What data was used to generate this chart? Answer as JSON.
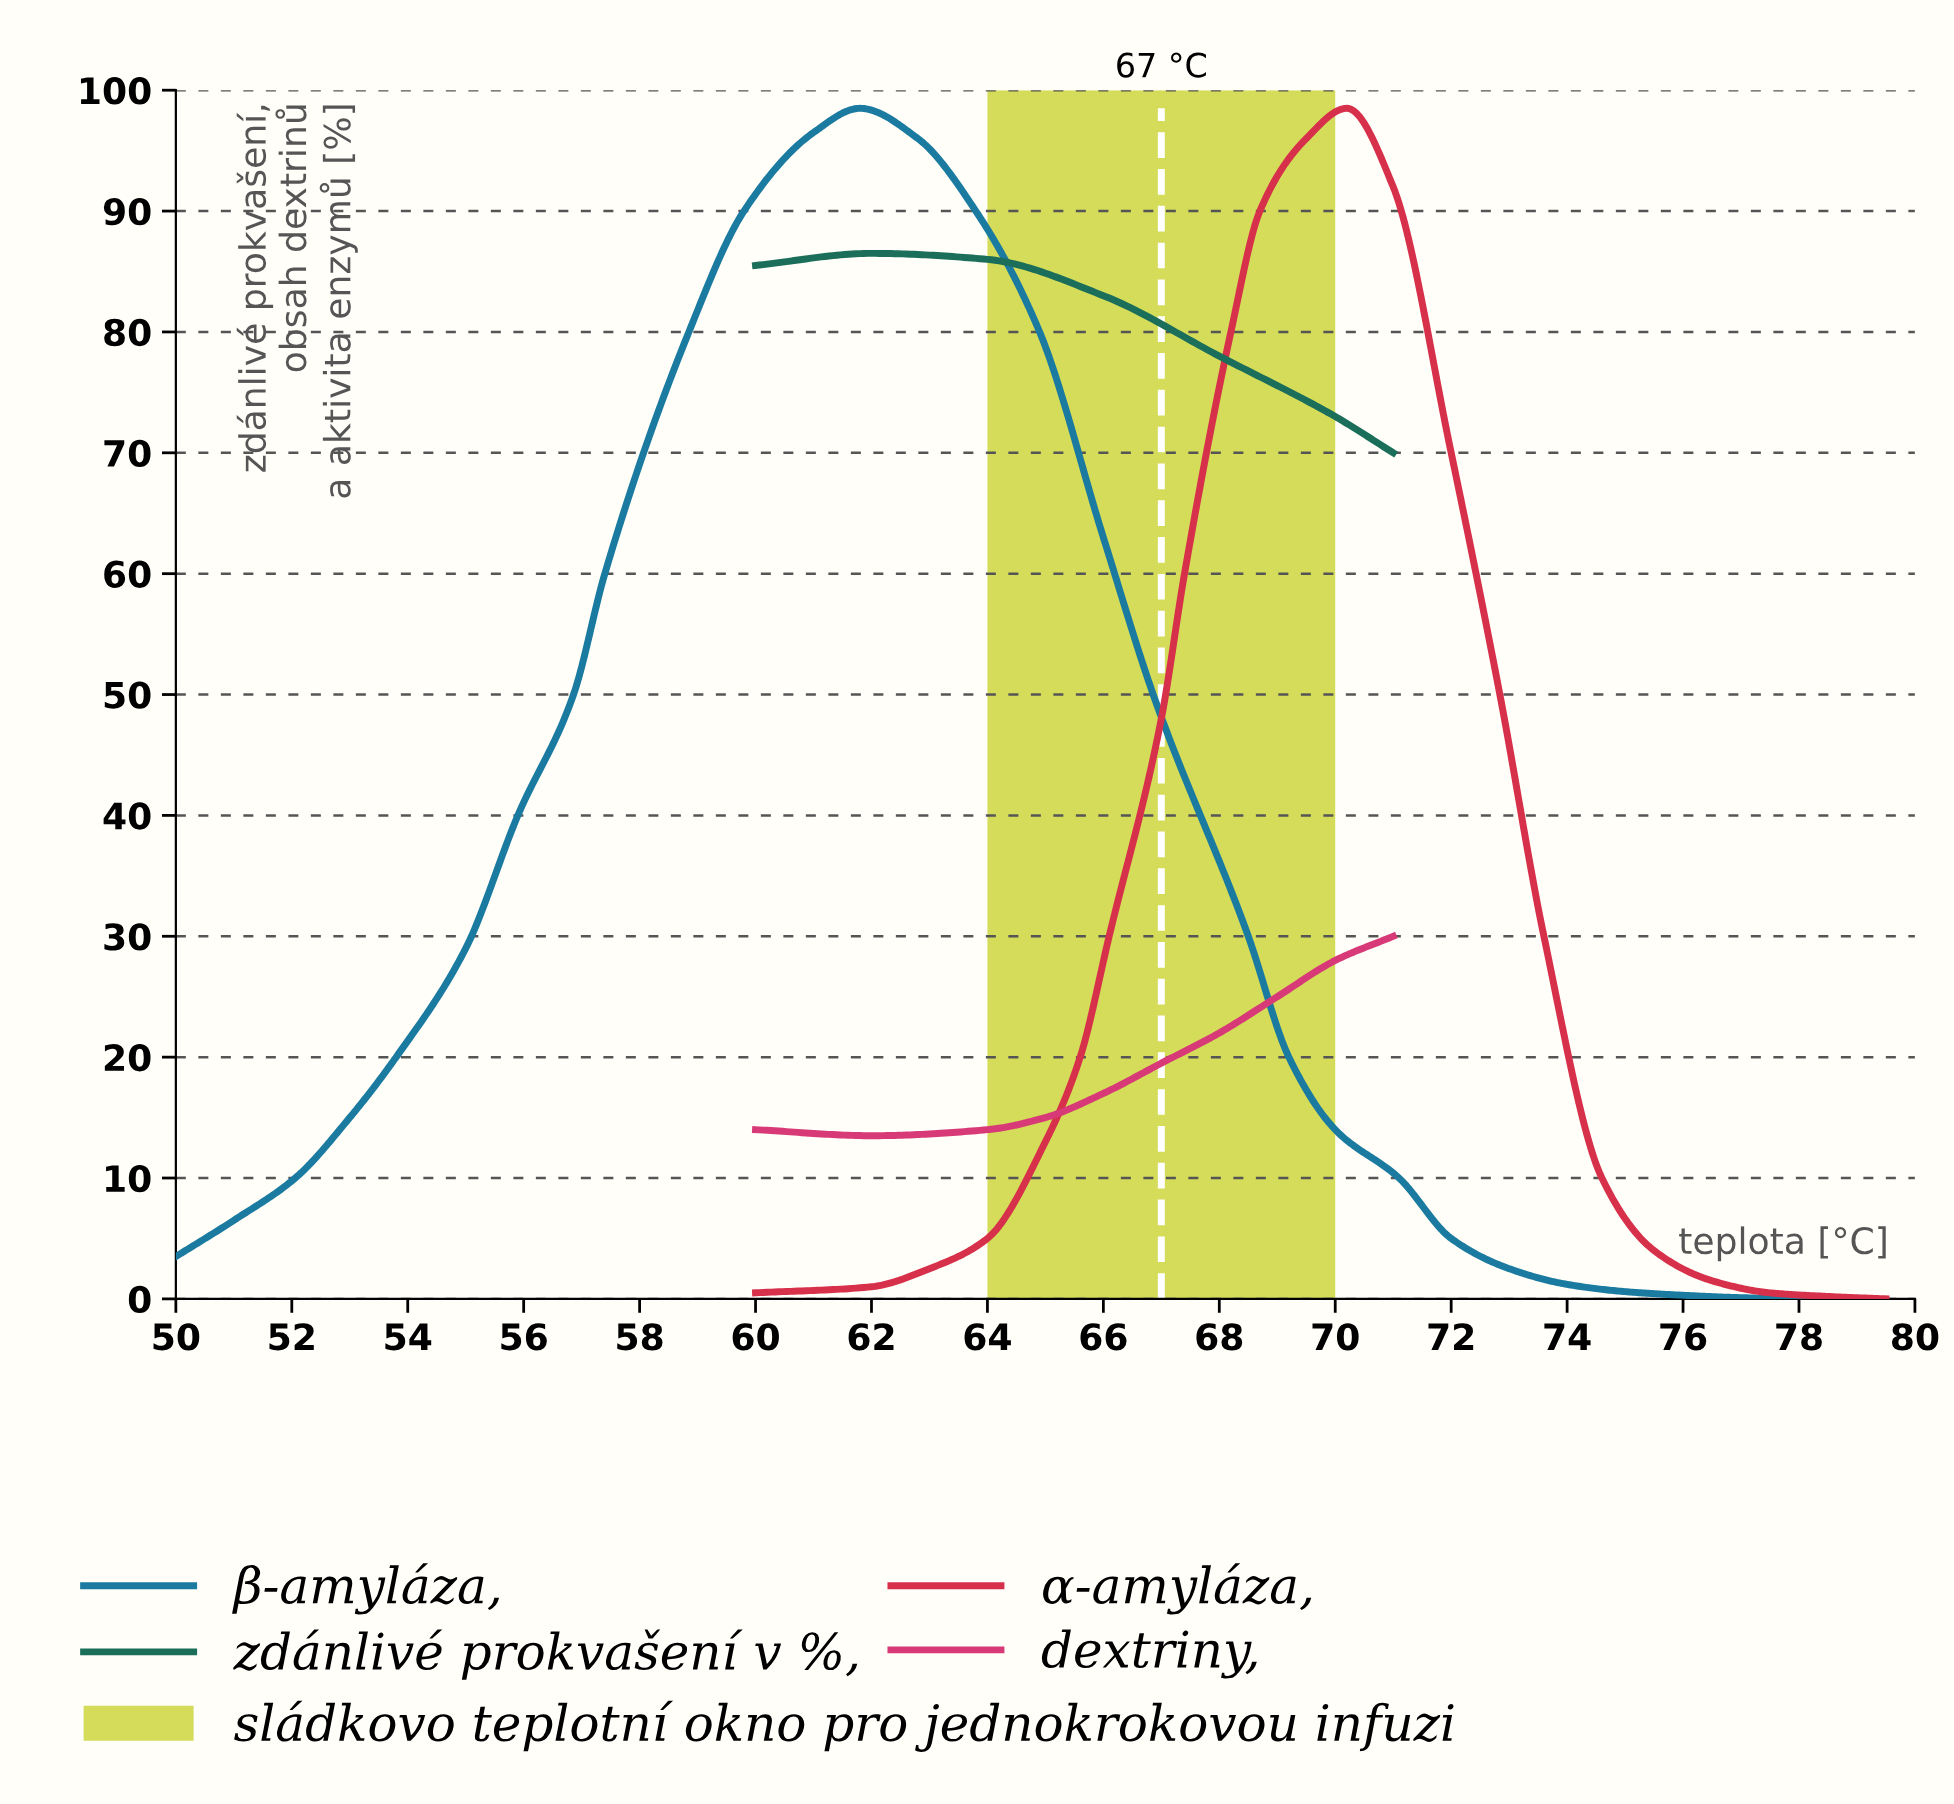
{
  "chart_data": {
    "type": "line",
    "xlabel": "teplota [°C]",
    "ylabel": "zdánlivé prokvašení,\nobsah dextrinů\na aktivita enzymů [%]",
    "xlim": [
      50,
      80
    ],
    "ylim": [
      0,
      100
    ],
    "xticks": [
      50,
      52,
      54,
      56,
      58,
      60,
      62,
      64,
      66,
      68,
      70,
      72,
      74,
      76,
      78,
      80
    ],
    "yticks": [
      0,
      10,
      20,
      30,
      40,
      50,
      60,
      70,
      80,
      90,
      100
    ],
    "grid": "y",
    "legend": "bottom",
    "marker": "none",
    "line_style": "solid",
    "series": [
      {
        "name": "β-amyláza,",
        "color": "#1a7aa0",
        "x": [
          50,
          51,
          52.06,
          53,
          53.8,
          55,
          55.9,
          56.86,
          57.4,
          58.85,
          59.8,
          61,
          61.8,
          62.8,
          63.8,
          64.9,
          66,
          66.86,
          68.5,
          69.2,
          70,
          71.1,
          72,
          73,
          74,
          75,
          76,
          77,
          78,
          79
        ],
        "values": [
          3.5,
          6.5,
          10,
          15,
          20,
          29,
          40,
          50,
          60,
          80,
          90,
          96.5,
          98.5,
          96,
          90,
          80,
          63,
          50,
          30,
          20,
          14,
          10,
          5,
          2.5,
          1.2,
          0.6,
          0.3,
          0.1,
          0,
          0
        ]
      },
      {
        "name": "α-amyláza,",
        "color": "#d6304a",
        "x": [
          60,
          62,
          63,
          64,
          65,
          65.6,
          66.1,
          67,
          67.4,
          68.2,
          68.7,
          69.5,
          70.2,
          71,
          72,
          72.84,
          73.6,
          74.6,
          75.5,
          76.5,
          77.5,
          78.5,
          79.5
        ],
        "values": [
          0.5,
          1,
          2.5,
          5,
          13,
          20,
          30,
          48,
          60,
          80,
          90,
          96,
          98.5,
          92,
          70,
          50,
          30,
          10,
          4,
          1.5,
          0.5,
          0.2,
          0
        ]
      },
      {
        "name": "zdánlivé prokvašení v %,",
        "color": "#1a6e5a",
        "x": [
          60,
          62,
          64,
          66,
          68,
          70,
          71
        ],
        "values": [
          85.5,
          86.5,
          86,
          83,
          78,
          73,
          70
        ]
      },
      {
        "name": "dextriny,",
        "color": "#d83a78",
        "x": [
          60,
          62,
          64,
          65,
          66,
          67,
          68,
          69,
          70,
          71
        ],
        "values": [
          14,
          13.5,
          14,
          15,
          17,
          19.5,
          22,
          25,
          28,
          30
        ]
      }
    ],
    "bands": [
      {
        "axis": "x",
        "from": 64,
        "to": 70,
        "label": "sládkovo teplotní okno pro jednokrokovou infuzi",
        "color": "#d4dc5a"
      }
    ],
    "ref_lines": [
      {
        "axis": "x",
        "value": 67,
        "label": "67 °C",
        "color": "#ffffff",
        "line_style": "dashed"
      }
    ]
  }
}
